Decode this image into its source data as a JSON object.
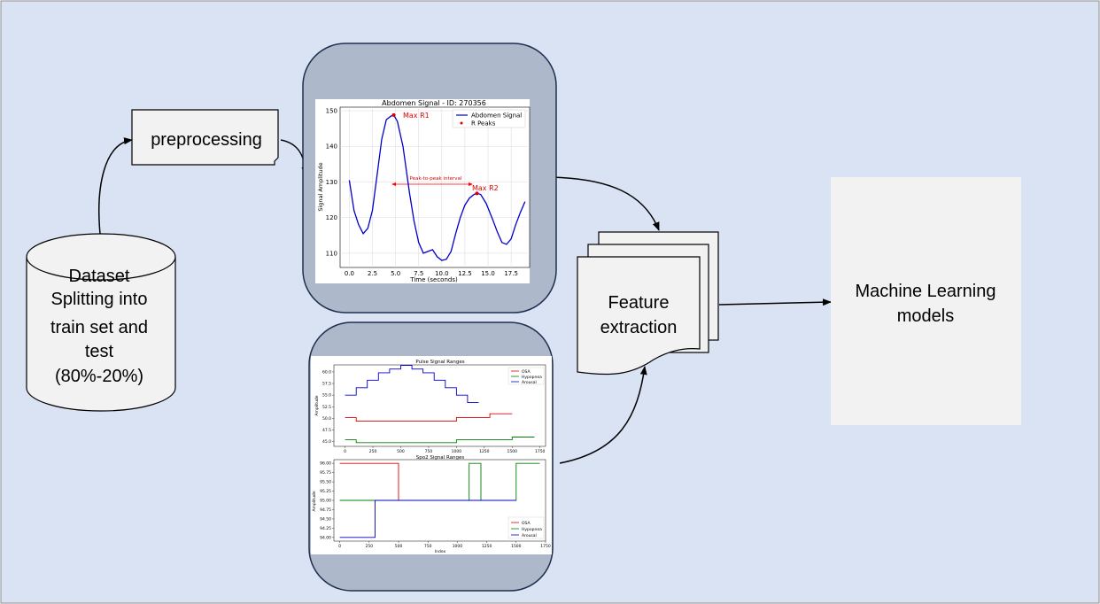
{
  "dataset": {
    "line1": "Dataset",
    "line2": "Splitting into",
    "line3": "train set and",
    "line4": "test",
    "line5": "(80%-20%)"
  },
  "preprocessing": {
    "label": "preprocessing"
  },
  "feature": {
    "line1": "Feature",
    "line2": "extraction"
  },
  "ml": {
    "line1": "Machine Learning",
    "line2": "models"
  },
  "colors": {
    "background": "#dae3f3",
    "panel": "#adb9ca",
    "box": "#f2f2f2",
    "ml_box": "#f2f2f2",
    "blue": "#0000cc",
    "red": "#e00000",
    "green": "#008000"
  },
  "abdomen": {
    "title": "Abdomen Signal  - ID: 270356",
    "xlabel": "Time (seconds)",
    "ylabel": "Signal Amplitude",
    "legend_signal": "Abdomen Signal",
    "legend_peaks": "R Peaks",
    "max_r1": "Max R1",
    "max_r2": "Max R2",
    "interval": "Peak-to-peak interval",
    "xticks": [
      "0.0",
      "2.5",
      "5.0",
      "7.5",
      "10.0",
      "12.5",
      "15.0",
      "17.5"
    ],
    "yticks": [
      "110",
      "120",
      "130",
      "140",
      "150"
    ]
  },
  "pulse": {
    "title": "Pulse Signal Ranges",
    "ylabel": "Amplitude",
    "legend": [
      "OSA",
      "Hypopnea",
      "Arousal"
    ],
    "xticks": [
      "0",
      "250",
      "500",
      "750",
      "1000",
      "1250",
      "1500",
      "1750"
    ],
    "yticks": [
      "45.0",
      "47.5",
      "50.0",
      "52.5",
      "55.0",
      "57.5",
      "60.0"
    ]
  },
  "spo2": {
    "title": "Spo2 Signal Ranges",
    "ylabel": "Amplitude",
    "xlabel": "Index",
    "legend": [
      "OSA",
      "Hypopnea",
      "Arousal"
    ],
    "xticks": [
      "0",
      "250",
      "500",
      "750",
      "1000",
      "1250",
      "1500",
      "1750"
    ],
    "yticks": [
      "94.00",
      "94.25",
      "94.50",
      "94.75",
      "95.00",
      "95.25",
      "95.50",
      "95.75",
      "96.00"
    ]
  },
  "chart_data": [
    {
      "type": "line",
      "title": "Abdomen Signal  - ID: 270356",
      "xlabel": "Time (seconds)",
      "ylabel": "Signal Amplitude",
      "xlim": [
        -1,
        19.5
      ],
      "ylim": [
        106,
        151
      ],
      "series": [
        {
          "name": "Abdomen Signal",
          "x": [
            0,
            0.5,
            1,
            1.5,
            2,
            2.5,
            3,
            3.5,
            4,
            4.5,
            4.8,
            5.2,
            5.8,
            6.5,
            7,
            7.5,
            8,
            8.5,
            9,
            9.5,
            10,
            10.5,
            11,
            11.5,
            12,
            12.5,
            13,
            13.5,
            13.8,
            14.2,
            14.8,
            15.5,
            16,
            16.5,
            17,
            17.5,
            18,
            18.5,
            19
          ],
          "y": [
            130.5,
            122,
            118,
            115.5,
            117,
            122,
            132,
            142,
            147.5,
            148.5,
            148.8,
            147,
            140,
            127,
            119,
            113,
            110,
            110.5,
            111,
            109,
            108,
            108.3,
            110.5,
            115.5,
            120,
            123.5,
            125.5,
            126.5,
            126.8,
            126.5,
            124,
            119.5,
            116,
            113,
            112.5,
            114,
            118,
            121.5,
            124.5
          ]
        },
        {
          "name": "R Peaks",
          "x": [
            4.8,
            13.8
          ],
          "y": [
            148.8,
            126.8
          ]
        }
      ],
      "annotations": [
        "Max R1",
        "Max R2",
        "Peak-to-peak interval"
      ]
    },
    {
      "type": "line",
      "title": "Pulse Signal Ranges",
      "ylabel": "Amplitude",
      "xlim": [
        -100,
        1800
      ],
      "ylim": [
        44,
        61.5
      ],
      "series": [
        {
          "name": "OSA",
          "x": [
            0,
            100,
            100,
            1000,
            1000,
            1300,
            1300,
            1500
          ],
          "y": [
            50.2,
            50.2,
            49.4,
            49.4,
            50.2,
            50.2,
            51.0,
            51.0
          ]
        },
        {
          "name": "Hypopnea",
          "x": [
            0,
            100,
            100,
            1000,
            1000,
            1500,
            1500,
            1700
          ],
          "y": [
            45.4,
            45.4,
            44.8,
            44.8,
            45.4,
            45.4,
            46.0,
            46.0
          ]
        },
        {
          "name": "Arousal",
          "x": [
            0,
            100,
            100,
            200,
            200,
            300,
            300,
            400,
            400,
            500,
            500,
            600,
            600,
            700,
            700,
            800,
            800,
            900,
            900,
            1000,
            1000,
            1100,
            1100,
            1200
          ],
          "y": [
            55,
            55,
            56.6,
            56.6,
            58.2,
            58.2,
            59.8,
            59.8,
            60.6,
            60.6,
            61.4,
            61.4,
            60.6,
            60.6,
            59.8,
            59.8,
            58.2,
            58.2,
            56.6,
            56.6,
            55,
            55,
            53.4,
            53.4
          ]
        }
      ]
    },
    {
      "type": "line",
      "title": "Spo2 Signal Ranges",
      "xlabel": "Index",
      "ylabel": "Amplitude",
      "xlim": [
        -50,
        1750
      ],
      "ylim": [
        93.9,
        96.1
      ],
      "series": [
        {
          "name": "OSA",
          "x": [
            0,
            500,
            500,
            1500
          ],
          "y": [
            96,
            96,
            95,
            95
          ]
        },
        {
          "name": "Hypopnea",
          "x": [
            0,
            1100,
            1100,
            1200,
            1200,
            1500,
            1500,
            1700
          ],
          "y": [
            95,
            95,
            96,
            96,
            95,
            95,
            96,
            96
          ]
        },
        {
          "name": "Arousal",
          "x": [
            0,
            300,
            300,
            1500
          ],
          "y": [
            94,
            94,
            95,
            95
          ]
        }
      ]
    }
  ]
}
